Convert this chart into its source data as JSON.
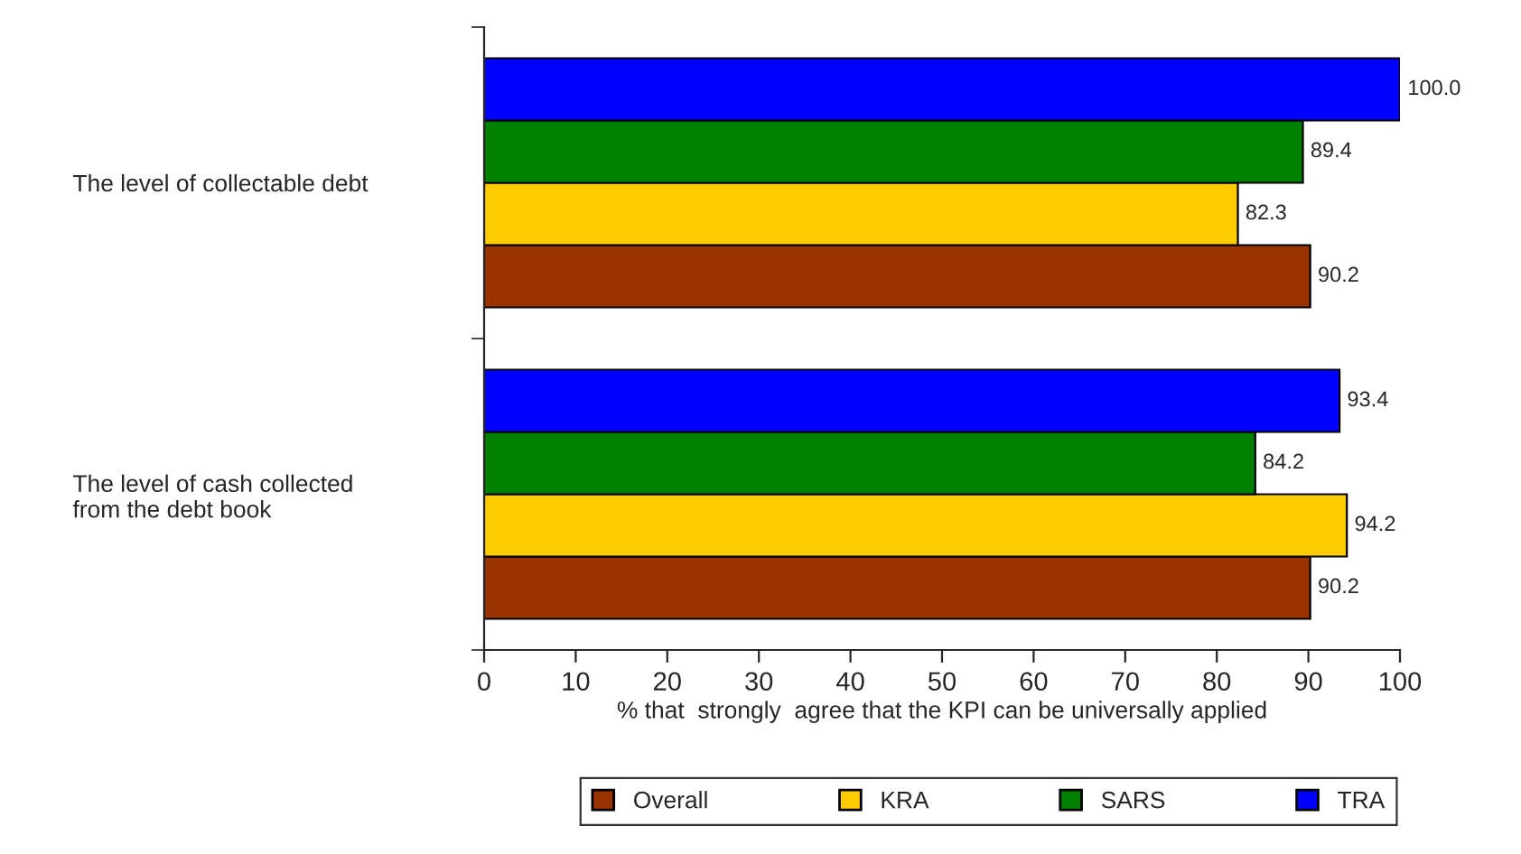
{
  "chart_data": {
    "type": "bar",
    "orientation": "horizontal",
    "xlabel": "% that  strongly  agree that the KPI can be universally applied",
    "categories": [
      "The level of collectable debt",
      "The level of cash collected\nfrom the debt book"
    ],
    "series": [
      {
        "name": "Overall",
        "color": "#993300",
        "values": [
          90.2,
          90.2
        ],
        "value_labels": [
          "90.2",
          "90.2"
        ]
      },
      {
        "name": "KRA",
        "color": "#ffcc00",
        "values": [
          82.3,
          94.2
        ],
        "value_labels": [
          "82.3",
          "94.2"
        ]
      },
      {
        "name": "SARS",
        "color": "#008000",
        "values": [
          89.4,
          84.2
        ],
        "value_labels": [
          "89.4",
          "84.2"
        ]
      },
      {
        "name": "TRA",
        "color": "#0000ff",
        "values": [
          100,
          93.4
        ],
        "value_labels": [
          "100.0",
          "93.4"
        ]
      }
    ],
    "xlim": [
      0,
      100
    ],
    "xticks": [
      0,
      10,
      20,
      30,
      40,
      50,
      60,
      70,
      80,
      90,
      100
    ],
    "legend": "bottom",
    "grid": false
  }
}
